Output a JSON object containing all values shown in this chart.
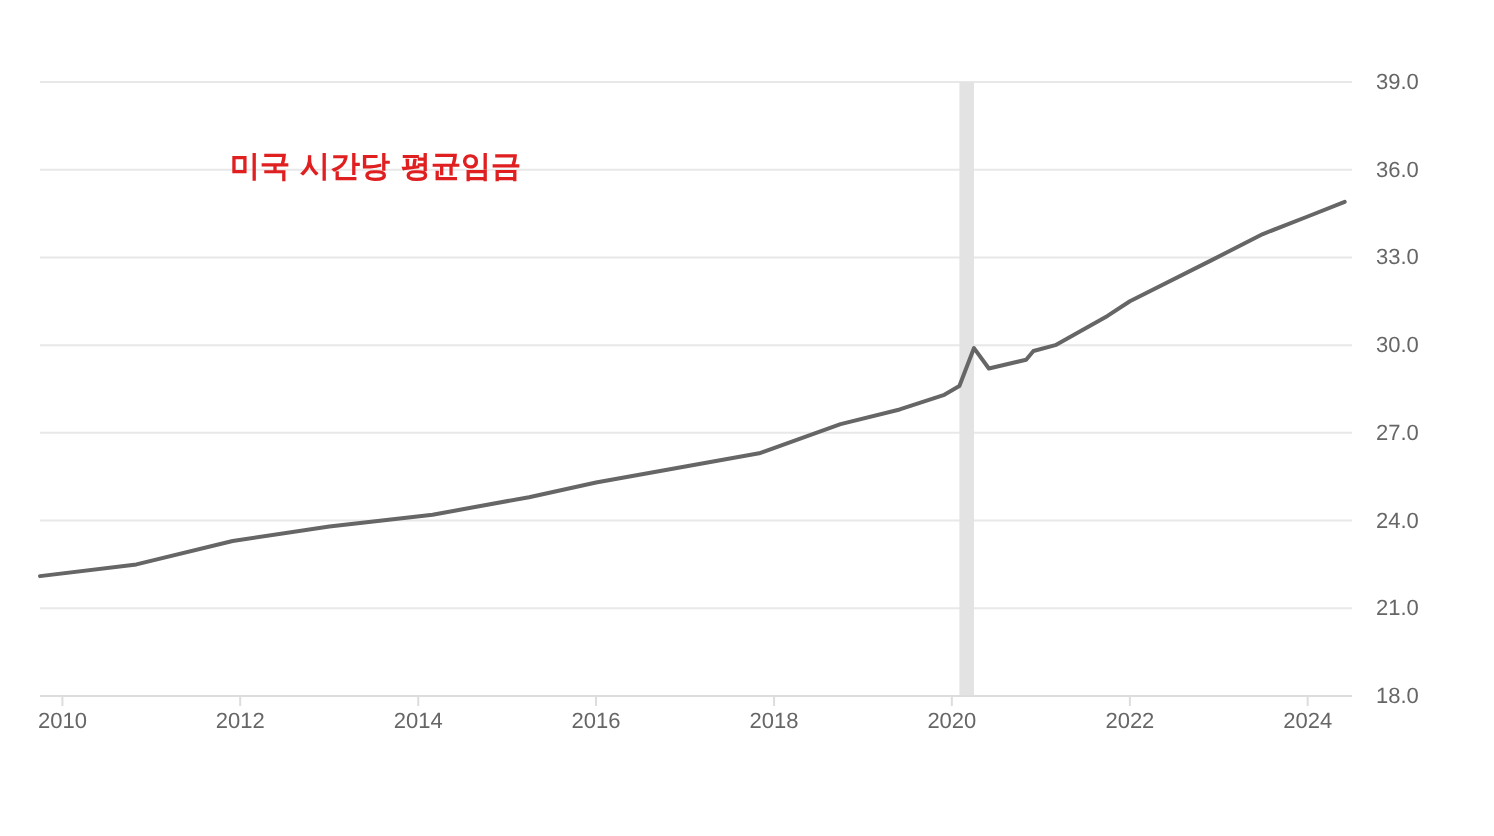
{
  "chart_data": {
    "type": "line",
    "annotations": [
      "미국 시간당 평균임금"
    ],
    "x": [
      "2009-10",
      "2010-11",
      "2011-12",
      "2013-01",
      "2014-03",
      "2015-04",
      "2016-01",
      "2017-11",
      "2018-10",
      "2019-06",
      "2019-12",
      "2020-02",
      "2020-04",
      "2020-06",
      "2020-11",
      "2020-12",
      "2021-03",
      "2021-10",
      "2022-01",
      "2022-12",
      "2023-07",
      "2024-01",
      "2024-06"
    ],
    "series": [
      {
        "color": "#666666",
        "values": [
          22.1,
          22.5,
          23.3,
          23.8,
          24.2,
          24.8,
          25.3,
          26.3,
          27.3,
          27.8,
          28.3,
          28.6,
          29.9,
          29.2,
          29.5,
          29.8,
          30.0,
          31.0,
          31.5,
          32.9,
          33.8,
          34.4,
          34.9
        ]
      }
    ],
    "xlim": [
      "2009-10",
      "2024-07"
    ],
    "xticks": [
      {
        "value": "2010",
        "label": "2010"
      },
      {
        "value": "2012",
        "label": "2012"
      },
      {
        "value": "2014",
        "label": "2014"
      },
      {
        "value": "2016",
        "label": "2016"
      },
      {
        "value": "2018",
        "label": "2018"
      },
      {
        "value": "2020",
        "label": "2020"
      },
      {
        "value": "2022",
        "label": "2022"
      },
      {
        "value": "2024",
        "label": "2024"
      }
    ],
    "ylim": [
      18,
      39
    ],
    "yticks": [
      {
        "value": 18,
        "label": "18.0"
      },
      {
        "value": 21,
        "label": "21.0"
      },
      {
        "value": 24,
        "label": "24.0"
      },
      {
        "value": 27,
        "label": "27.0"
      },
      {
        "value": 30,
        "label": "30.0"
      },
      {
        "value": 33,
        "label": "33.0"
      },
      {
        "value": 36,
        "label": "36.0"
      },
      {
        "value": 39,
        "label": "39.0"
      }
    ],
    "bands": [
      {
        "axis": "x",
        "from": "2020-02",
        "to": "2020-04",
        "color": "#e3e3e3"
      }
    ],
    "grid": "y",
    "line_style": "solid",
    "marker": "none"
  }
}
